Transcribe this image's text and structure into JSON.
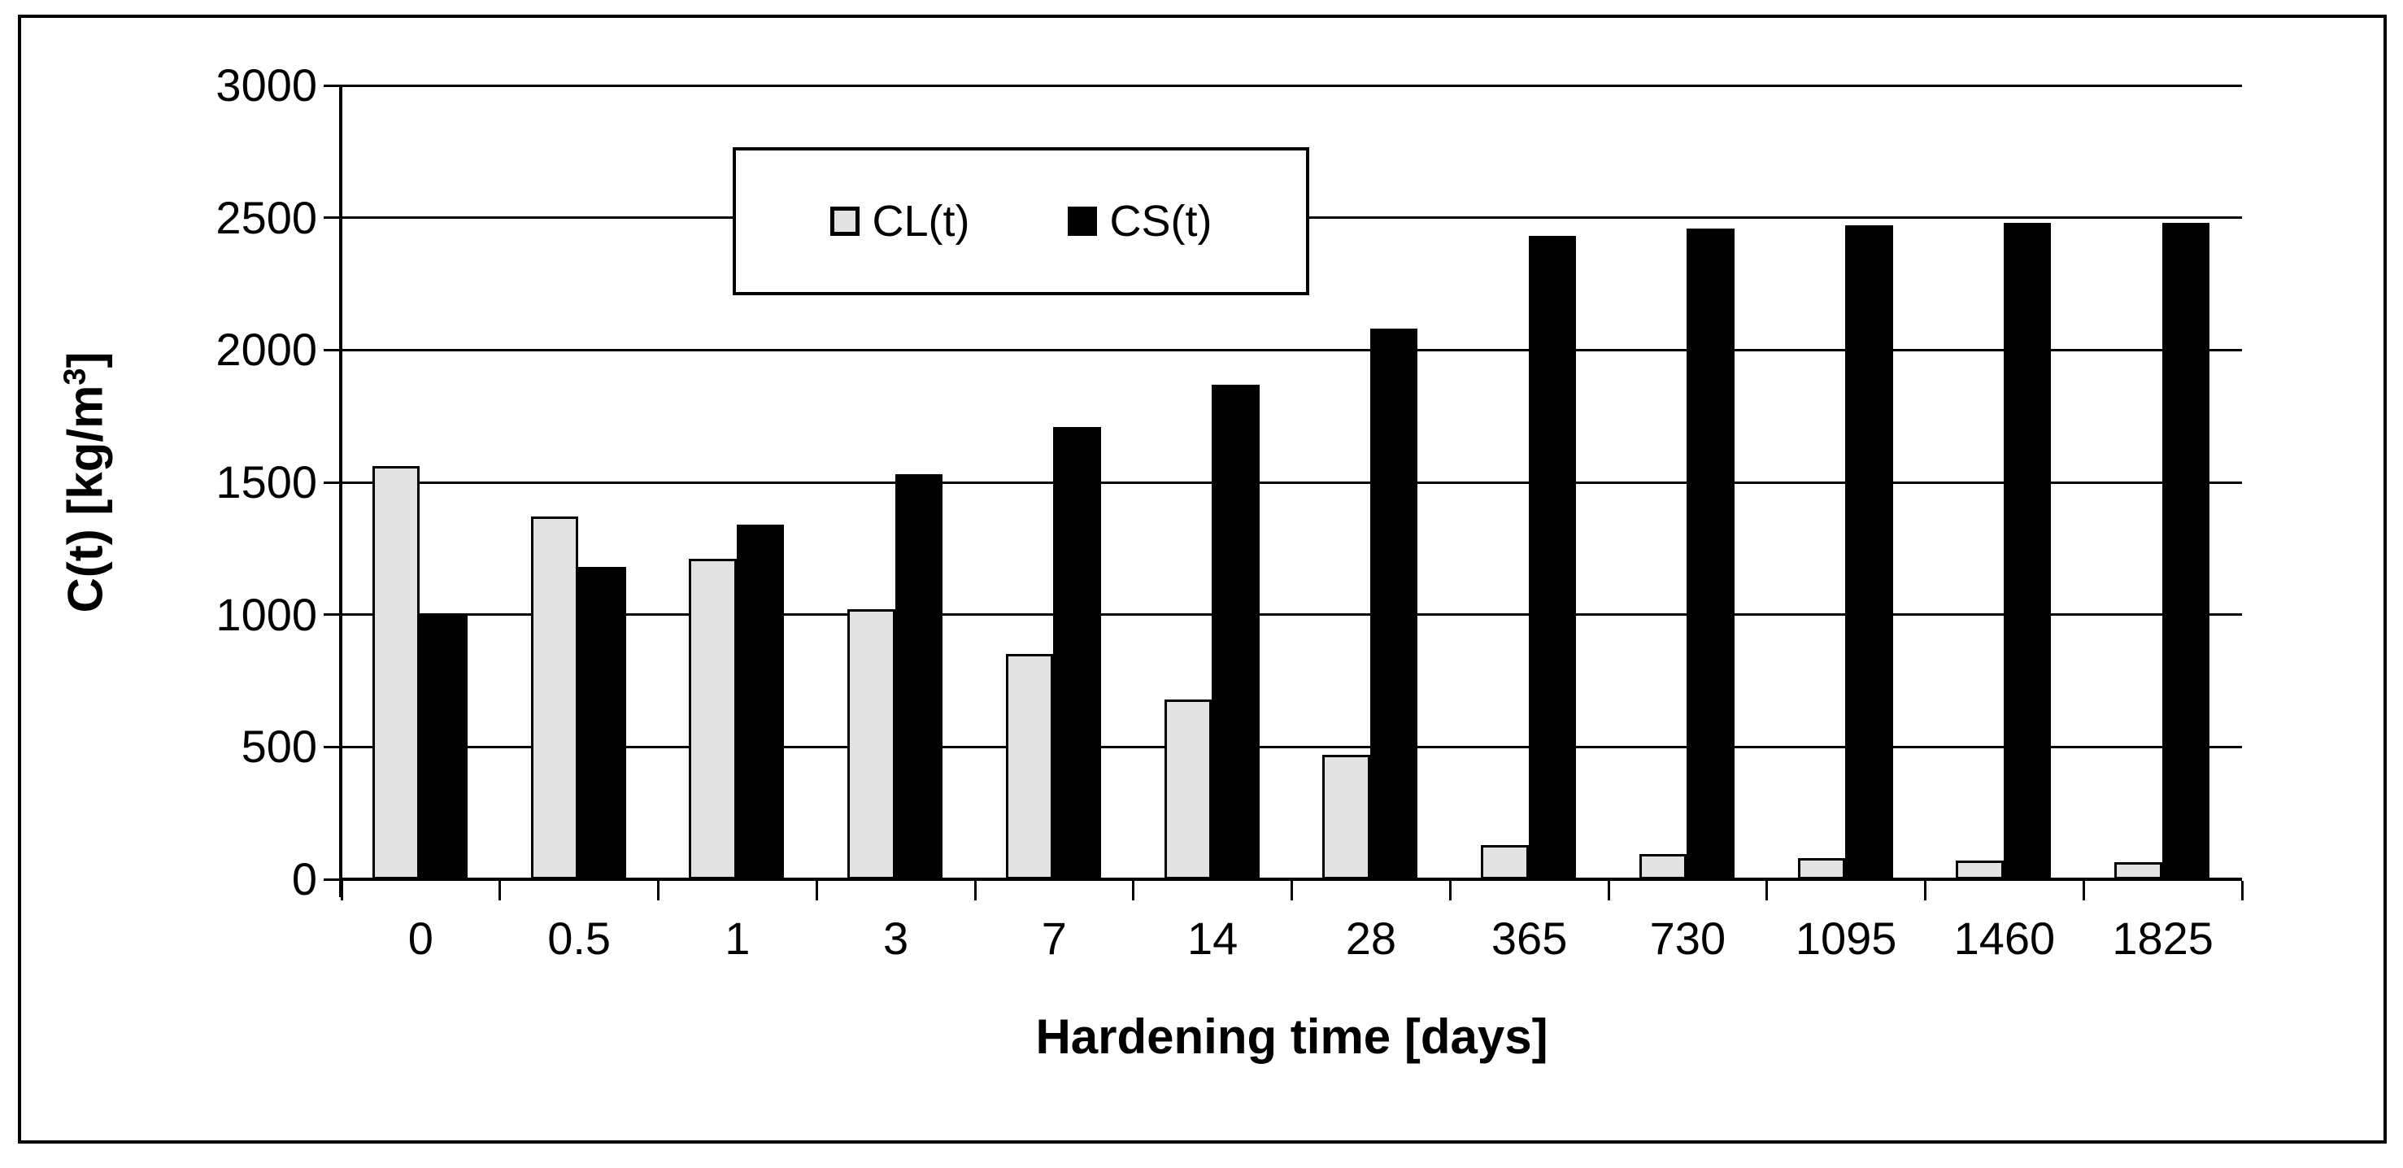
{
  "figure": {
    "background": "#FFFFFF",
    "border_color": "#000000"
  },
  "chart_data": {
    "type": "bar",
    "title": "",
    "categories": [
      "0",
      "0.5",
      "1",
      "3",
      "7",
      "14",
      "28",
      "365",
      "730",
      "1095",
      "1460",
      "1825"
    ],
    "series": [
      {
        "name": "CL(t)",
        "color": "#E2E2E2",
        "border_color": "#000000",
        "values": [
          1560,
          1370,
          1210,
          1020,
          850,
          680,
          470,
          130,
          95,
          80,
          70,
          65
        ]
      },
      {
        "name": "CS(t)",
        "color": "#000000",
        "border_color": "#000000",
        "values": [
          1000,
          1180,
          1340,
          1530,
          1710,
          1870,
          2080,
          2430,
          2460,
          2470,
          2480,
          2480
        ]
      }
    ],
    "xlabel": "Hardening time [days]",
    "ylabel_main": "C(t) [kg/m",
    "ylabel_sup": "3",
    "ylabel_close": "]",
    "ylim": [
      0,
      3000
    ],
    "ytick_step": 500,
    "yticks": [
      "0",
      "500",
      "1000",
      "1500",
      "2000",
      "2500",
      "3000"
    ],
    "grid": "horizontal-on",
    "legend_position": "inside-top-center"
  },
  "legend": {
    "items": [
      {
        "label": "CL(t)",
        "color": "#E2E2E2"
      },
      {
        "label": "CS(t)",
        "color": "#000000"
      }
    ]
  }
}
